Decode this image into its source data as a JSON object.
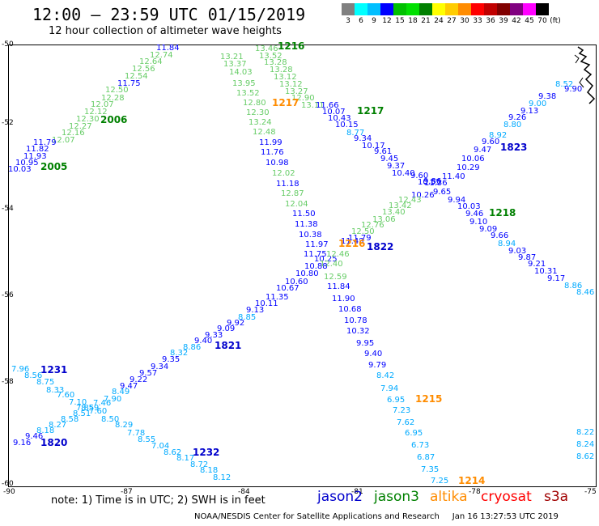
{
  "header": {
    "title": "12:00 – 23:59 UTC 01/15/2019",
    "subtitle": "12 hour collection of altimeter wave heights"
  },
  "legend": {
    "unit": "(ft)",
    "values": [
      "3",
      "6",
      "9",
      "12",
      "15",
      "18",
      "21",
      "24",
      "27",
      "30",
      "33",
      "36",
      "39",
      "42",
      "45",
      "70"
    ],
    "colors": [
      "#808080",
      "#00ffff",
      "#00bfff",
      "#0000ff",
      "#00c000",
      "#00e000",
      "#008000",
      "#ffff00",
      "#ffcc00",
      "#ff8c00",
      "#ff0000",
      "#c00000",
      "#800000",
      "#800080",
      "#ff00ff",
      "#000000"
    ]
  },
  "axes": {
    "y_labels": [
      "-50",
      "-52",
      "-54",
      "-56",
      "-58",
      "-60"
    ],
    "x_labels": [
      "-90",
      "-87",
      "-84",
      "-81",
      "-78",
      "-75"
    ]
  },
  "chart_data": {
    "type": "map-tracks",
    "track_labels": [
      {
        "text": "1216",
        "color": "#008000"
      },
      {
        "text": "2006",
        "color": "#008000"
      },
      {
        "text": "2005",
        "color": "#008000"
      },
      {
        "text": "1217",
        "color": "#ff8c00"
      },
      {
        "text": "1217",
        "color": "#008000"
      },
      {
        "text": "1823",
        "color": "#0000cc"
      },
      {
        "text": "1218",
        "color": "#008000"
      },
      {
        "text": "1822",
        "color": "#0000cc"
      },
      {
        "text": "1216",
        "color": "#ff8c00"
      },
      {
        "text": "1821",
        "color": "#0000cc"
      },
      {
        "text": "1231",
        "color": "#0000cc"
      },
      {
        "text": "1820",
        "color": "#0000cc"
      },
      {
        "text": "1232",
        "color": "#0000cc"
      },
      {
        "text": "1215",
        "color": "#ff8c00"
      },
      {
        "text": "1214",
        "color": "#ff8c00"
      }
    ],
    "points": [
      {
        "v": "11.84",
        "c": "#0000ff"
      },
      {
        "v": "12.74",
        "c": "#66cc66"
      },
      {
        "v": "12.64",
        "c": "#66cc66"
      },
      {
        "v": "12.56",
        "c": "#66cc66"
      },
      {
        "v": "12.54",
        "c": "#66cc66"
      },
      {
        "v": "11.75",
        "c": "#0000ff"
      },
      {
        "v": "12.50",
        "c": "#66cc66"
      },
      {
        "v": "12.28",
        "c": "#66cc66"
      },
      {
        "v": "12.07",
        "c": "#66cc66"
      },
      {
        "v": "12.12",
        "c": "#66cc66"
      },
      {
        "v": "12.30",
        "c": "#66cc66"
      },
      {
        "v": "12.27",
        "c": "#66cc66"
      },
      {
        "v": "12.16",
        "c": "#66cc66"
      },
      {
        "v": "12.07",
        "c": "#66cc66"
      },
      {
        "v": "11.79",
        "c": "#0000ff"
      },
      {
        "v": "11.82",
        "c": "#0000ff"
      },
      {
        "v": "11.93",
        "c": "#0000ff"
      },
      {
        "v": "10.95",
        "c": "#0000ff"
      },
      {
        "v": "10.03",
        "c": "#0000ff"
      },
      {
        "v": "13.21",
        "c": "#66cc66"
      },
      {
        "v": "13.37",
        "c": "#66cc66"
      },
      {
        "v": "14.03",
        "c": "#66cc66"
      },
      {
        "v": "13.95",
        "c": "#66cc66"
      },
      {
        "v": "13.52",
        "c": "#66cc66"
      },
      {
        "v": "12.80",
        "c": "#66cc66"
      },
      {
        "v": "12.30",
        "c": "#66cc66"
      },
      {
        "v": "13.24",
        "c": "#66cc66"
      },
      {
        "v": "12.48",
        "c": "#66cc66"
      },
      {
        "v": "11.99",
        "c": "#0000ff"
      },
      {
        "v": "11.76",
        "c": "#0000ff"
      },
      {
        "v": "10.98",
        "c": "#0000ff"
      },
      {
        "v": "12.02",
        "c": "#66cc66"
      },
      {
        "v": "11.18",
        "c": "#0000ff"
      },
      {
        "v": "12.87",
        "c": "#66cc66"
      },
      {
        "v": "12.04",
        "c": "#66cc66"
      },
      {
        "v": "11.50",
        "c": "#0000ff"
      },
      {
        "v": "11.38",
        "c": "#0000ff"
      },
      {
        "v": "10.38",
        "c": "#0000ff"
      },
      {
        "v": "11.97",
        "c": "#0000ff"
      },
      {
        "v": "11.75",
        "c": "#0000ff"
      },
      {
        "v": "10.25",
        "c": "#0000ff"
      },
      {
        "v": "12.46",
        "c": "#66cc66"
      },
      {
        "v": "12.40",
        "c": "#66cc66"
      },
      {
        "v": "12.59",
        "c": "#66cc66"
      },
      {
        "v": "11.84",
        "c": "#0000ff"
      },
      {
        "v": "11.90",
        "c": "#0000ff"
      },
      {
        "v": "10.68",
        "c": "#0000ff"
      },
      {
        "v": "10.78",
        "c": "#0000ff"
      },
      {
        "v": "10.32",
        "c": "#0000ff"
      },
      {
        "v": "9.95",
        "c": "#0000ff"
      },
      {
        "v": "9.40",
        "c": "#0000ff"
      },
      {
        "v": "9.79",
        "c": "#0000ff"
      },
      {
        "v": "8.42",
        "c": "#00aaff"
      },
      {
        "v": "7.94",
        "c": "#00aaff"
      },
      {
        "v": "6.95",
        "c": "#00aaff"
      },
      {
        "v": "7.23",
        "c": "#00aaff"
      },
      {
        "v": "7.62",
        "c": "#00aaff"
      },
      {
        "v": "6.95",
        "c": "#00aaff"
      },
      {
        "v": "6.73",
        "c": "#00aaff"
      },
      {
        "v": "6.87",
        "c": "#00aaff"
      },
      {
        "v": "7.35",
        "c": "#00aaff"
      },
      {
        "v": "7.25",
        "c": "#00aaff"
      },
      {
        "v": "13.46",
        "c": "#66cc66"
      },
      {
        "v": "13.52",
        "c": "#66cc66"
      },
      {
        "v": "13.28",
        "c": "#66cc66"
      },
      {
        "v": "13.28",
        "c": "#66cc66"
      },
      {
        "v": "13.12",
        "c": "#66cc66"
      },
      {
        "v": "13.12",
        "c": "#66cc66"
      },
      {
        "v": "13.27",
        "c": "#66cc66"
      },
      {
        "v": "12.90",
        "c": "#66cc66"
      },
      {
        "v": "13.11",
        "c": "#66cc66"
      },
      {
        "v": "11.66",
        "c": "#0000ff"
      },
      {
        "v": "10.07",
        "c": "#0000ff"
      },
      {
        "v": "10.43",
        "c": "#0000ff"
      },
      {
        "v": "10.15",
        "c": "#0000ff"
      },
      {
        "v": "8.77",
        "c": "#00aaff"
      },
      {
        "v": "9.34",
        "c": "#0000ff"
      },
      {
        "v": "10.17",
        "c": "#0000ff"
      },
      {
        "v": "9.61",
        "c": "#0000ff"
      },
      {
        "v": "9.45",
        "c": "#0000ff"
      },
      {
        "v": "9.37",
        "c": "#0000ff"
      },
      {
        "v": "10.40",
        "c": "#0000ff"
      },
      {
        "v": "9.60",
        "c": "#0000ff"
      },
      {
        "v": "9.86",
        "c": "#0000ff"
      },
      {
        "v": "9.65",
        "c": "#0000ff"
      },
      {
        "v": "9.94",
        "c": "#0000ff"
      },
      {
        "v": "10.03",
        "c": "#0000ff"
      },
      {
        "v": "9.46",
        "c": "#0000ff"
      },
      {
        "v": "9.10",
        "c": "#0000ff"
      },
      {
        "v": "9.09",
        "c": "#0000ff"
      },
      {
        "v": "9.66",
        "c": "#0000ff"
      },
      {
        "v": "8.94",
        "c": "#00aaff"
      },
      {
        "v": "9.03",
        "c": "#0000ff"
      },
      {
        "v": "9.87",
        "c": "#0000ff"
      },
      {
        "v": "9.21",
        "c": "#0000ff"
      },
      {
        "v": "10.31",
        "c": "#0000ff"
      },
      {
        "v": "9.17",
        "c": "#0000ff"
      },
      {
        "v": "8.86",
        "c": "#00aaff"
      },
      {
        "v": "8.46",
        "c": "#00aaff"
      },
      {
        "v": "8.52",
        "c": "#00aaff"
      },
      {
        "v": "9.90",
        "c": "#0000ff"
      },
      {
        "v": "9.38",
        "c": "#0000ff"
      },
      {
        "v": "9.00",
        "c": "#00aaff"
      },
      {
        "v": "9.13",
        "c": "#0000ff"
      },
      {
        "v": "9.26",
        "c": "#0000ff"
      },
      {
        "v": "8.80",
        "c": "#00aaff"
      },
      {
        "v": "8.92",
        "c": "#00aaff"
      },
      {
        "v": "9.60",
        "c": "#0000ff"
      },
      {
        "v": "9.47",
        "c": "#0000ff"
      },
      {
        "v": "10.06",
        "c": "#0000ff"
      },
      {
        "v": "10.29",
        "c": "#0000ff"
      },
      {
        "v": "11.40",
        "c": "#0000ff"
      },
      {
        "v": "11.36",
        "c": "#0000ff"
      },
      {
        "v": "10.55",
        "c": "#0000ff"
      },
      {
        "v": "10.26",
        "c": "#0000ff"
      },
      {
        "v": "12.43",
        "c": "#66cc66"
      },
      {
        "v": "13.42",
        "c": "#66cc66"
      },
      {
        "v": "13.40",
        "c": "#66cc66"
      },
      {
        "v": "13.06",
        "c": "#66cc66"
      },
      {
        "v": "12.76",
        "c": "#66cc66"
      },
      {
        "v": "12.50",
        "c": "#66cc66"
      },
      {
        "v": "11.79",
        "c": "#0000ff"
      },
      {
        "v": "11.43",
        "c": "#0000ff"
      },
      {
        "v": "10.88",
        "c": "#0000ff"
      },
      {
        "v": "10.80",
        "c": "#0000ff"
      },
      {
        "v": "10.60",
        "c": "#0000ff"
      },
      {
        "v": "10.67",
        "c": "#0000ff"
      },
      {
        "v": "11.35",
        "c": "#0000ff"
      },
      {
        "v": "10.11",
        "c": "#0000ff"
      },
      {
        "v": "9.13",
        "c": "#0000ff"
      },
      {
        "v": "8.85",
        "c": "#00aaff"
      },
      {
        "v": "9.92",
        "c": "#0000ff"
      },
      {
        "v": "9.09",
        "c": "#0000ff"
      },
      {
        "v": "9.33",
        "c": "#0000ff"
      },
      {
        "v": "9.40",
        "c": "#0000ff"
      },
      {
        "v": "8.86",
        "c": "#00aaff"
      },
      {
        "v": "8.32",
        "c": "#00aaff"
      },
      {
        "v": "9.35",
        "c": "#0000ff"
      },
      {
        "v": "9.34",
        "c": "#0000ff"
      },
      {
        "v": "9.57",
        "c": "#0000ff"
      },
      {
        "v": "9.22",
        "c": "#0000ff"
      },
      {
        "v": "9.47",
        "c": "#0000ff"
      },
      {
        "v": "8.49",
        "c": "#00aaff"
      },
      {
        "v": "7.90",
        "c": "#00aaff"
      },
      {
        "v": "7.46",
        "c": "#00aaff"
      },
      {
        "v": "8.59",
        "c": "#00aaff"
      },
      {
        "v": "8.51",
        "c": "#00aaff"
      },
      {
        "v": "8.58",
        "c": "#00aaff"
      },
      {
        "v": "8.27",
        "c": "#00aaff"
      },
      {
        "v": "8.18",
        "c": "#00aaff"
      },
      {
        "v": "9.46",
        "c": "#0000ff"
      },
      {
        "v": "9.16",
        "c": "#0000ff"
      },
      {
        "v": "7.96",
        "c": "#00aaff"
      },
      {
        "v": "8.56",
        "c": "#00aaff"
      },
      {
        "v": "8.75",
        "c": "#00aaff"
      },
      {
        "v": "8.33",
        "c": "#00aaff"
      },
      {
        "v": "7.60",
        "c": "#00aaff"
      },
      {
        "v": "7.10",
        "c": "#00aaff"
      },
      {
        "v": "7.85",
        "c": "#00aaff"
      },
      {
        "v": "7.60",
        "c": "#00aaff"
      },
      {
        "v": "8.50",
        "c": "#00aaff"
      },
      {
        "v": "8.29",
        "c": "#00aaff"
      },
      {
        "v": "7.78",
        "c": "#00aaff"
      },
      {
        "v": "8.55",
        "c": "#00aaff"
      },
      {
        "v": "7.04",
        "c": "#00aaff"
      },
      {
        "v": "8.62",
        "c": "#00aaff"
      },
      {
        "v": "8.17",
        "c": "#00aaff"
      },
      {
        "v": "8.72",
        "c": "#00aaff"
      },
      {
        "v": "8.18",
        "c": "#00aaff"
      },
      {
        "v": "8.12",
        "c": "#00aaff"
      },
      {
        "v": "8.22",
        "c": "#00aaff"
      },
      {
        "v": "8.24",
        "c": "#00aaff"
      },
      {
        "v": "8.62",
        "c": "#00aaff"
      }
    ]
  },
  "footer": {
    "note": "note:  1) Time is in UTC;  2) SWH is in feet",
    "missions": [
      {
        "name": "jason2",
        "color": "#0000cc"
      },
      {
        "name": "jason3",
        "color": "#008000"
      },
      {
        "name": "altika",
        "color": "#ff8c00"
      },
      {
        "name": "cryosat",
        "color": "#ff0000"
      },
      {
        "name": "s3a",
        "color": "#a00000"
      }
    ],
    "credit": "NOAA/NESDIS Center for Satellite Applications and Research",
    "timestamp": "Jan 16 13:27:53 UTC 2019"
  }
}
